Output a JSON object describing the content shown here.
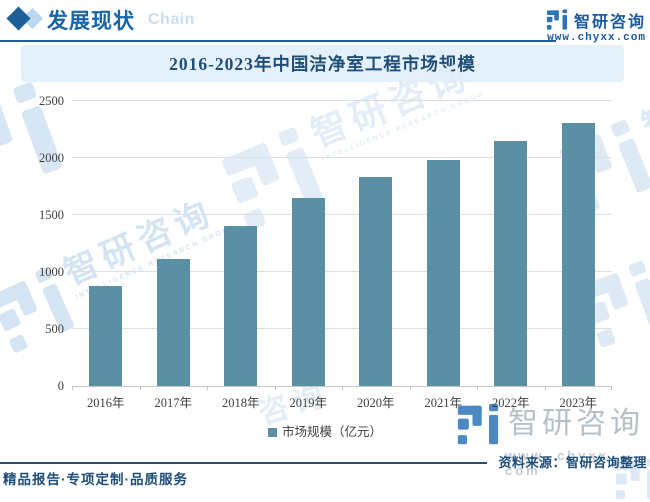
{
  "header": {
    "section_title": "发展现状",
    "section_subtitle": "Chain",
    "brand_name": "智研咨询",
    "brand_url": "www.chyxx.com"
  },
  "chart_data": {
    "type": "bar",
    "title": "2016-2023年中国洁净室工程市场规模",
    "categories": [
      "2016年",
      "2017年",
      "2018年",
      "2019年",
      "2020年",
      "2021年",
      "2022年",
      "2023年"
    ],
    "values": [
      880,
      1115,
      1400,
      1650,
      1830,
      1985,
      2145,
      2310
    ],
    "series_name": "市场规模（亿元）",
    "xlabel": "",
    "ylabel": "",
    "ylim": [
      0,
      2500
    ],
    "yticks": [
      0,
      500,
      1000,
      1500,
      2000,
      2500
    ],
    "grid": true,
    "legend_position": "bottom",
    "bar_color": "#5b8fa3"
  },
  "footer": {
    "tagline": "精品报告·专项定制·品质服务",
    "source": "资料来源：智研咨询整理"
  },
  "watermark": {
    "brand": "智研咨询",
    "brand_en": "INTELLIGENCE RESEARCH GROUP",
    "fragment": "咨询",
    "url": "www. chyxx. com"
  },
  "colors": {
    "bar": "#5b8fa3",
    "header_navy": "#1d5f98",
    "title_navy": "#1f4e79",
    "band_bg": "#e4f1fa",
    "brand_blue": "#1b5aa0",
    "gridline": "#dedede",
    "watermark_blue": "#2e74b8",
    "watermark_gray": "#b5c1ca"
  }
}
